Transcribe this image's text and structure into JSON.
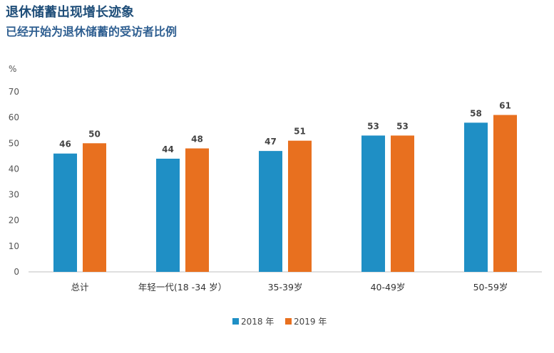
{
  "title": "退休储蓄出现增长迹象",
  "subtitle": "已经开始为退休储蓄的受访者比例",
  "colors": {
    "series_2018": "#1f8fc5",
    "series_2019": "#e8701f",
    "axis": "#bfbfbf"
  },
  "chart_data": {
    "type": "bar",
    "ylabel": "%",
    "ylim": [
      0,
      70
    ],
    "yticks": [
      0,
      10,
      20,
      30,
      40,
      50,
      60,
      70
    ],
    "grid": false,
    "legend": "bottom-center",
    "categories": [
      "总计",
      "年轻一代(18 -34 岁）",
      "35-39岁",
      "40-49岁",
      "50-59岁"
    ],
    "series": [
      {
        "name": "2018 年",
        "values": [
          46,
          44,
          47,
          53,
          58
        ]
      },
      {
        "name": "2019 年",
        "values": [
          50,
          48,
          51,
          53,
          61
        ]
      }
    ]
  }
}
